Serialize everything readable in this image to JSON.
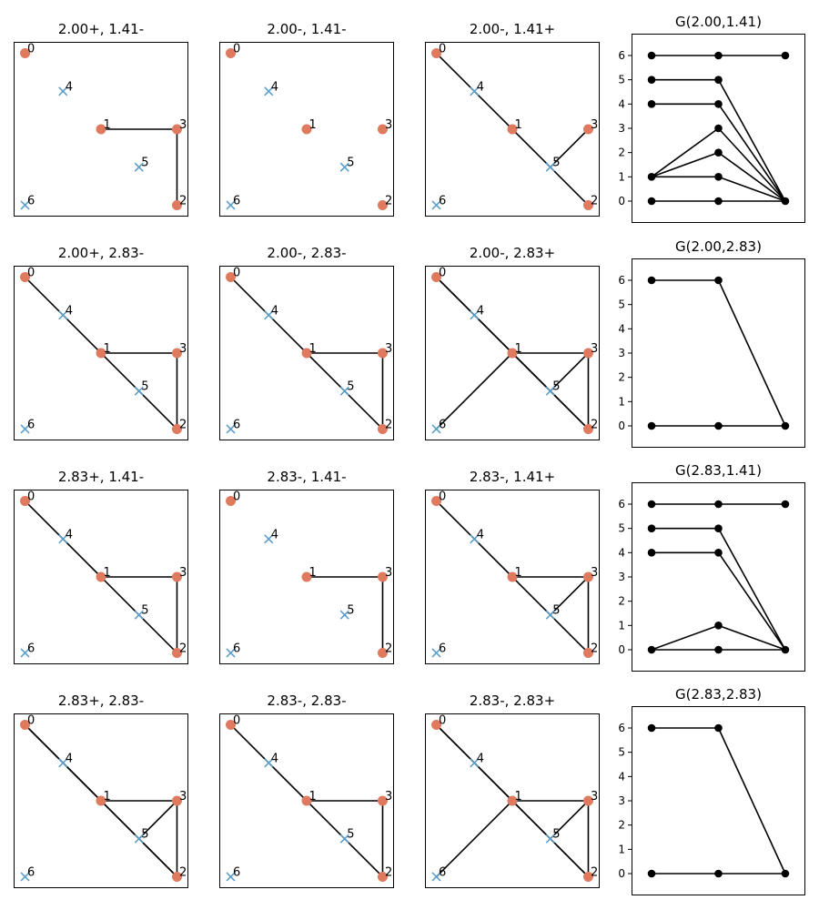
{
  "colors": {
    "red_point": "#e07a5f",
    "blue_point": "#5b9ec9",
    "edge": "#000000",
    "axes": "#000000",
    "background": "#ffffff"
  },
  "chart_data": {
    "type": "scatter",
    "description_kind": "graph grid",
    "points": [
      {
        "id": 0,
        "x": 0,
        "y": 4,
        "kind": "red"
      },
      {
        "id": 1,
        "x": 2,
        "y": 2,
        "kind": "red"
      },
      {
        "id": 2,
        "x": 4,
        "y": 0,
        "kind": "red"
      },
      {
        "id": 3,
        "x": 4,
        "y": 2,
        "kind": "red"
      },
      {
        "id": 4,
        "x": 1,
        "y": 3,
        "kind": "blue"
      },
      {
        "id": 5,
        "x": 3,
        "y": 1,
        "kind": "blue"
      },
      {
        "id": 6,
        "x": 0,
        "y": 0,
        "kind": "blue"
      }
    ],
    "graph_panels": [
      {
        "title": "2.00+, 1.41-",
        "edges": [
          [
            1,
            3
          ],
          [
            3,
            2
          ]
        ]
      },
      {
        "title": "2.00-, 1.41-",
        "edges": []
      },
      {
        "title": "2.00-, 1.41+",
        "edges": [
          [
            0,
            4
          ],
          [
            4,
            1
          ],
          [
            1,
            5
          ],
          [
            5,
            2
          ],
          [
            5,
            3
          ]
        ]
      },
      {
        "title": "2.00+, 2.83-",
        "edges": [
          [
            0,
            1
          ],
          [
            1,
            3
          ],
          [
            1,
            2
          ],
          [
            3,
            2
          ]
        ]
      },
      {
        "title": "2.00-, 2.83-",
        "edges": [
          [
            0,
            1
          ],
          [
            1,
            3
          ],
          [
            1,
            2
          ],
          [
            3,
            2
          ]
        ]
      },
      {
        "title": "2.00-, 2.83+",
        "edges": [
          [
            0,
            1
          ],
          [
            1,
            3
          ],
          [
            1,
            2
          ],
          [
            3,
            2
          ],
          [
            0,
            4
          ],
          [
            4,
            1
          ],
          [
            1,
            5
          ],
          [
            5,
            2
          ],
          [
            5,
            3
          ],
          [
            1,
            6
          ]
        ]
      },
      {
        "title": "2.83+, 1.41-",
        "edges": [
          [
            0,
            1
          ],
          [
            1,
            3
          ],
          [
            1,
            2
          ],
          [
            3,
            2
          ]
        ]
      },
      {
        "title": "2.83-, 1.41-",
        "edges": [
          [
            1,
            3
          ],
          [
            3,
            2
          ]
        ]
      },
      {
        "title": "2.83-, 1.41+",
        "edges": [
          [
            0,
            1
          ],
          [
            1,
            3
          ],
          [
            1,
            2
          ],
          [
            3,
            2
          ],
          [
            5,
            3
          ]
        ]
      },
      {
        "title": "2.83+, 2.83-",
        "edges": [
          [
            0,
            1
          ],
          [
            1,
            3
          ],
          [
            1,
            2
          ],
          [
            3,
            2
          ],
          [
            0,
            4
          ],
          [
            4,
            1
          ],
          [
            1,
            5
          ],
          [
            5,
            2
          ],
          [
            5,
            3
          ]
        ]
      },
      {
        "title": "2.83-, 2.83-",
        "edges": [
          [
            0,
            1
          ],
          [
            1,
            3
          ],
          [
            1,
            2
          ],
          [
            3,
            2
          ]
        ]
      },
      {
        "title": "2.83-, 2.83+",
        "edges": [
          [
            0,
            1
          ],
          [
            1,
            3
          ],
          [
            1,
            2
          ],
          [
            3,
            2
          ],
          [
            0,
            4
          ],
          [
            4,
            1
          ],
          [
            1,
            5
          ],
          [
            5,
            2
          ],
          [
            5,
            3
          ],
          [
            1,
            6
          ]
        ]
      }
    ],
    "map_panels": [
      {
        "title": "G(2.00,1.41)",
        "yticks": [
          0,
          1,
          2,
          3,
          4,
          5,
          6
        ],
        "ylim": [
          -0.9,
          6.9
        ],
        "points": [
          [
            0,
            0
          ],
          [
            0,
            1
          ],
          [
            0,
            4
          ],
          [
            0,
            5
          ],
          [
            0,
            6
          ],
          [
            1,
            0
          ],
          [
            1,
            1
          ],
          [
            1,
            2
          ],
          [
            1,
            3
          ],
          [
            1,
            4
          ],
          [
            1,
            5
          ],
          [
            1,
            6
          ],
          [
            2,
            0
          ],
          [
            2,
            6
          ]
        ],
        "segments": [
          [
            [
              0,
              0
            ],
            [
              1,
              0
            ]
          ],
          [
            [
              1,
              0
            ],
            [
              2,
              0
            ]
          ],
          [
            [
              0,
              1
            ],
            [
              1,
              1
            ]
          ],
          [
            [
              1,
              1
            ],
            [
              2,
              0
            ]
          ],
          [
            [
              0,
              1
            ],
            [
              1,
              2
            ]
          ],
          [
            [
              1,
              2
            ],
            [
              2,
              0
            ]
          ],
          [
            [
              0,
              1
            ],
            [
              1,
              3
            ]
          ],
          [
            [
              1,
              3
            ],
            [
              2,
              0
            ]
          ],
          [
            [
              0,
              4
            ],
            [
              1,
              4
            ]
          ],
          [
            [
              1,
              4
            ],
            [
              2,
              0
            ]
          ],
          [
            [
              0,
              5
            ],
            [
              1,
              5
            ]
          ],
          [
            [
              1,
              5
            ],
            [
              2,
              0
            ]
          ],
          [
            [
              0,
              6
            ],
            [
              1,
              6
            ]
          ],
          [
            [
              1,
              6
            ],
            [
              2,
              6
            ]
          ]
        ]
      },
      {
        "title": "G(2.00,2.83)",
        "yticks": [
          0,
          1,
          2,
          3,
          4,
          5,
          6
        ],
        "ylim": [
          -0.9,
          6.9
        ],
        "points": [
          [
            0,
            0
          ],
          [
            0,
            6
          ],
          [
            1,
            0
          ],
          [
            1,
            6
          ],
          [
            2,
            0
          ]
        ],
        "segments": [
          [
            [
              0,
              0
            ],
            [
              1,
              0
            ]
          ],
          [
            [
              1,
              0
            ],
            [
              2,
              0
            ]
          ],
          [
            [
              0,
              6
            ],
            [
              1,
              6
            ]
          ],
          [
            [
              1,
              6
            ],
            [
              2,
              0
            ]
          ]
        ]
      },
      {
        "title": "G(2.83,1.41)",
        "yticks": [
          0,
          1,
          2,
          3,
          4,
          5,
          6
        ],
        "ylim": [
          -0.9,
          6.9
        ],
        "points": [
          [
            0,
            0
          ],
          [
            0,
            4
          ],
          [
            0,
            5
          ],
          [
            0,
            6
          ],
          [
            1,
            0
          ],
          [
            1,
            1
          ],
          [
            1,
            4
          ],
          [
            1,
            5
          ],
          [
            1,
            6
          ],
          [
            2,
            0
          ],
          [
            2,
            6
          ]
        ],
        "segments": [
          [
            [
              0,
              0
            ],
            [
              1,
              0
            ]
          ],
          [
            [
              1,
              0
            ],
            [
              2,
              0
            ]
          ],
          [
            [
              0,
              0
            ],
            [
              1,
              1
            ]
          ],
          [
            [
              1,
              1
            ],
            [
              2,
              0
            ]
          ],
          [
            [
              0,
              4
            ],
            [
              1,
              4
            ]
          ],
          [
            [
              1,
              4
            ],
            [
              2,
              0
            ]
          ],
          [
            [
              0,
              5
            ],
            [
              1,
              5
            ]
          ],
          [
            [
              1,
              5
            ],
            [
              2,
              0
            ]
          ],
          [
            [
              0,
              6
            ],
            [
              1,
              6
            ]
          ],
          [
            [
              1,
              6
            ],
            [
              2,
              6
            ]
          ]
        ]
      },
      {
        "title": "G(2.83,2.83)",
        "yticks": [
          0,
          1,
          2,
          3,
          4,
          5,
          6
        ],
        "ylim": [
          -0.9,
          6.9
        ],
        "points": [
          [
            0,
            0
          ],
          [
            0,
            6
          ],
          [
            1,
            0
          ],
          [
            1,
            6
          ],
          [
            2,
            0
          ]
        ],
        "segments": [
          [
            [
              0,
              0
            ],
            [
              1,
              0
            ]
          ],
          [
            [
              1,
              0
            ],
            [
              2,
              0
            ]
          ],
          [
            [
              0,
              6
            ],
            [
              1,
              6
            ]
          ],
          [
            [
              1,
              6
            ],
            [
              2,
              0
            ]
          ]
        ]
      }
    ]
  }
}
